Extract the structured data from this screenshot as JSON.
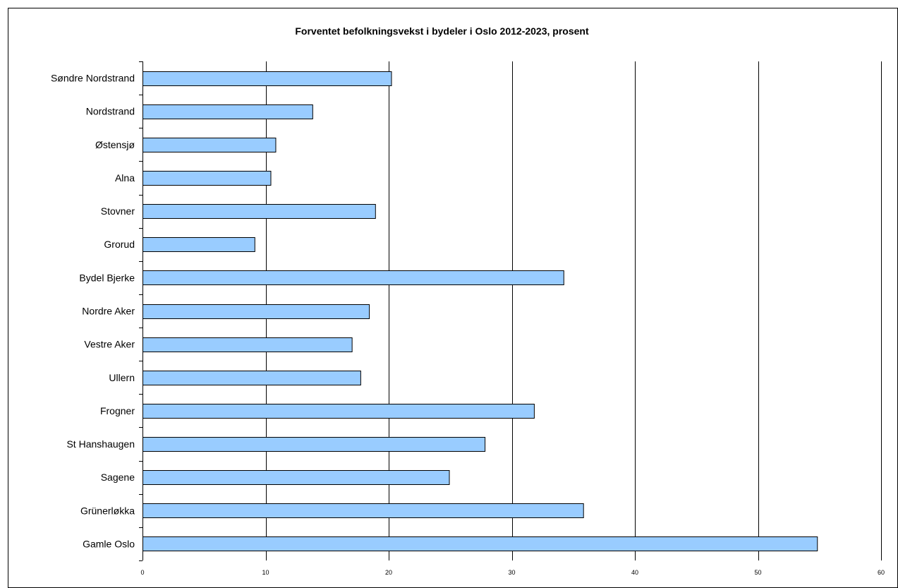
{
  "chart_data": {
    "type": "bar",
    "orientation": "horizontal",
    "title": "Forventet befolkningsvekst i bydeler i Oslo 2012-2023, prosent",
    "xlabel": "",
    "ylabel": "",
    "categories": [
      "Søndre Nordstrand",
      "Nordstrand",
      "Østensjø",
      "Alna",
      "Stovner",
      "Grorud",
      "Bydel Bjerke",
      "Nordre Aker",
      "Vestre Aker",
      "Ullern",
      "Frogner",
      "St Hanshaugen",
      "Sagene",
      "Grünerløkka",
      "Gamle Oslo"
    ],
    "values": [
      20.2,
      13.8,
      10.8,
      10.4,
      18.9,
      9.1,
      34.2,
      18.4,
      17.0,
      17.7,
      31.8,
      27.8,
      24.9,
      35.8,
      54.8
    ],
    "xlim": [
      0,
      60
    ],
    "x_ticks": [
      "0",
      "10",
      "20",
      "30",
      "40",
      "50",
      "60"
    ],
    "grid": "vertical",
    "legend": "none",
    "colors": {
      "bar_fill": "#99ccff",
      "bar_stroke": "#000000",
      "gridline": "#000000",
      "background": "#ffffff"
    }
  }
}
